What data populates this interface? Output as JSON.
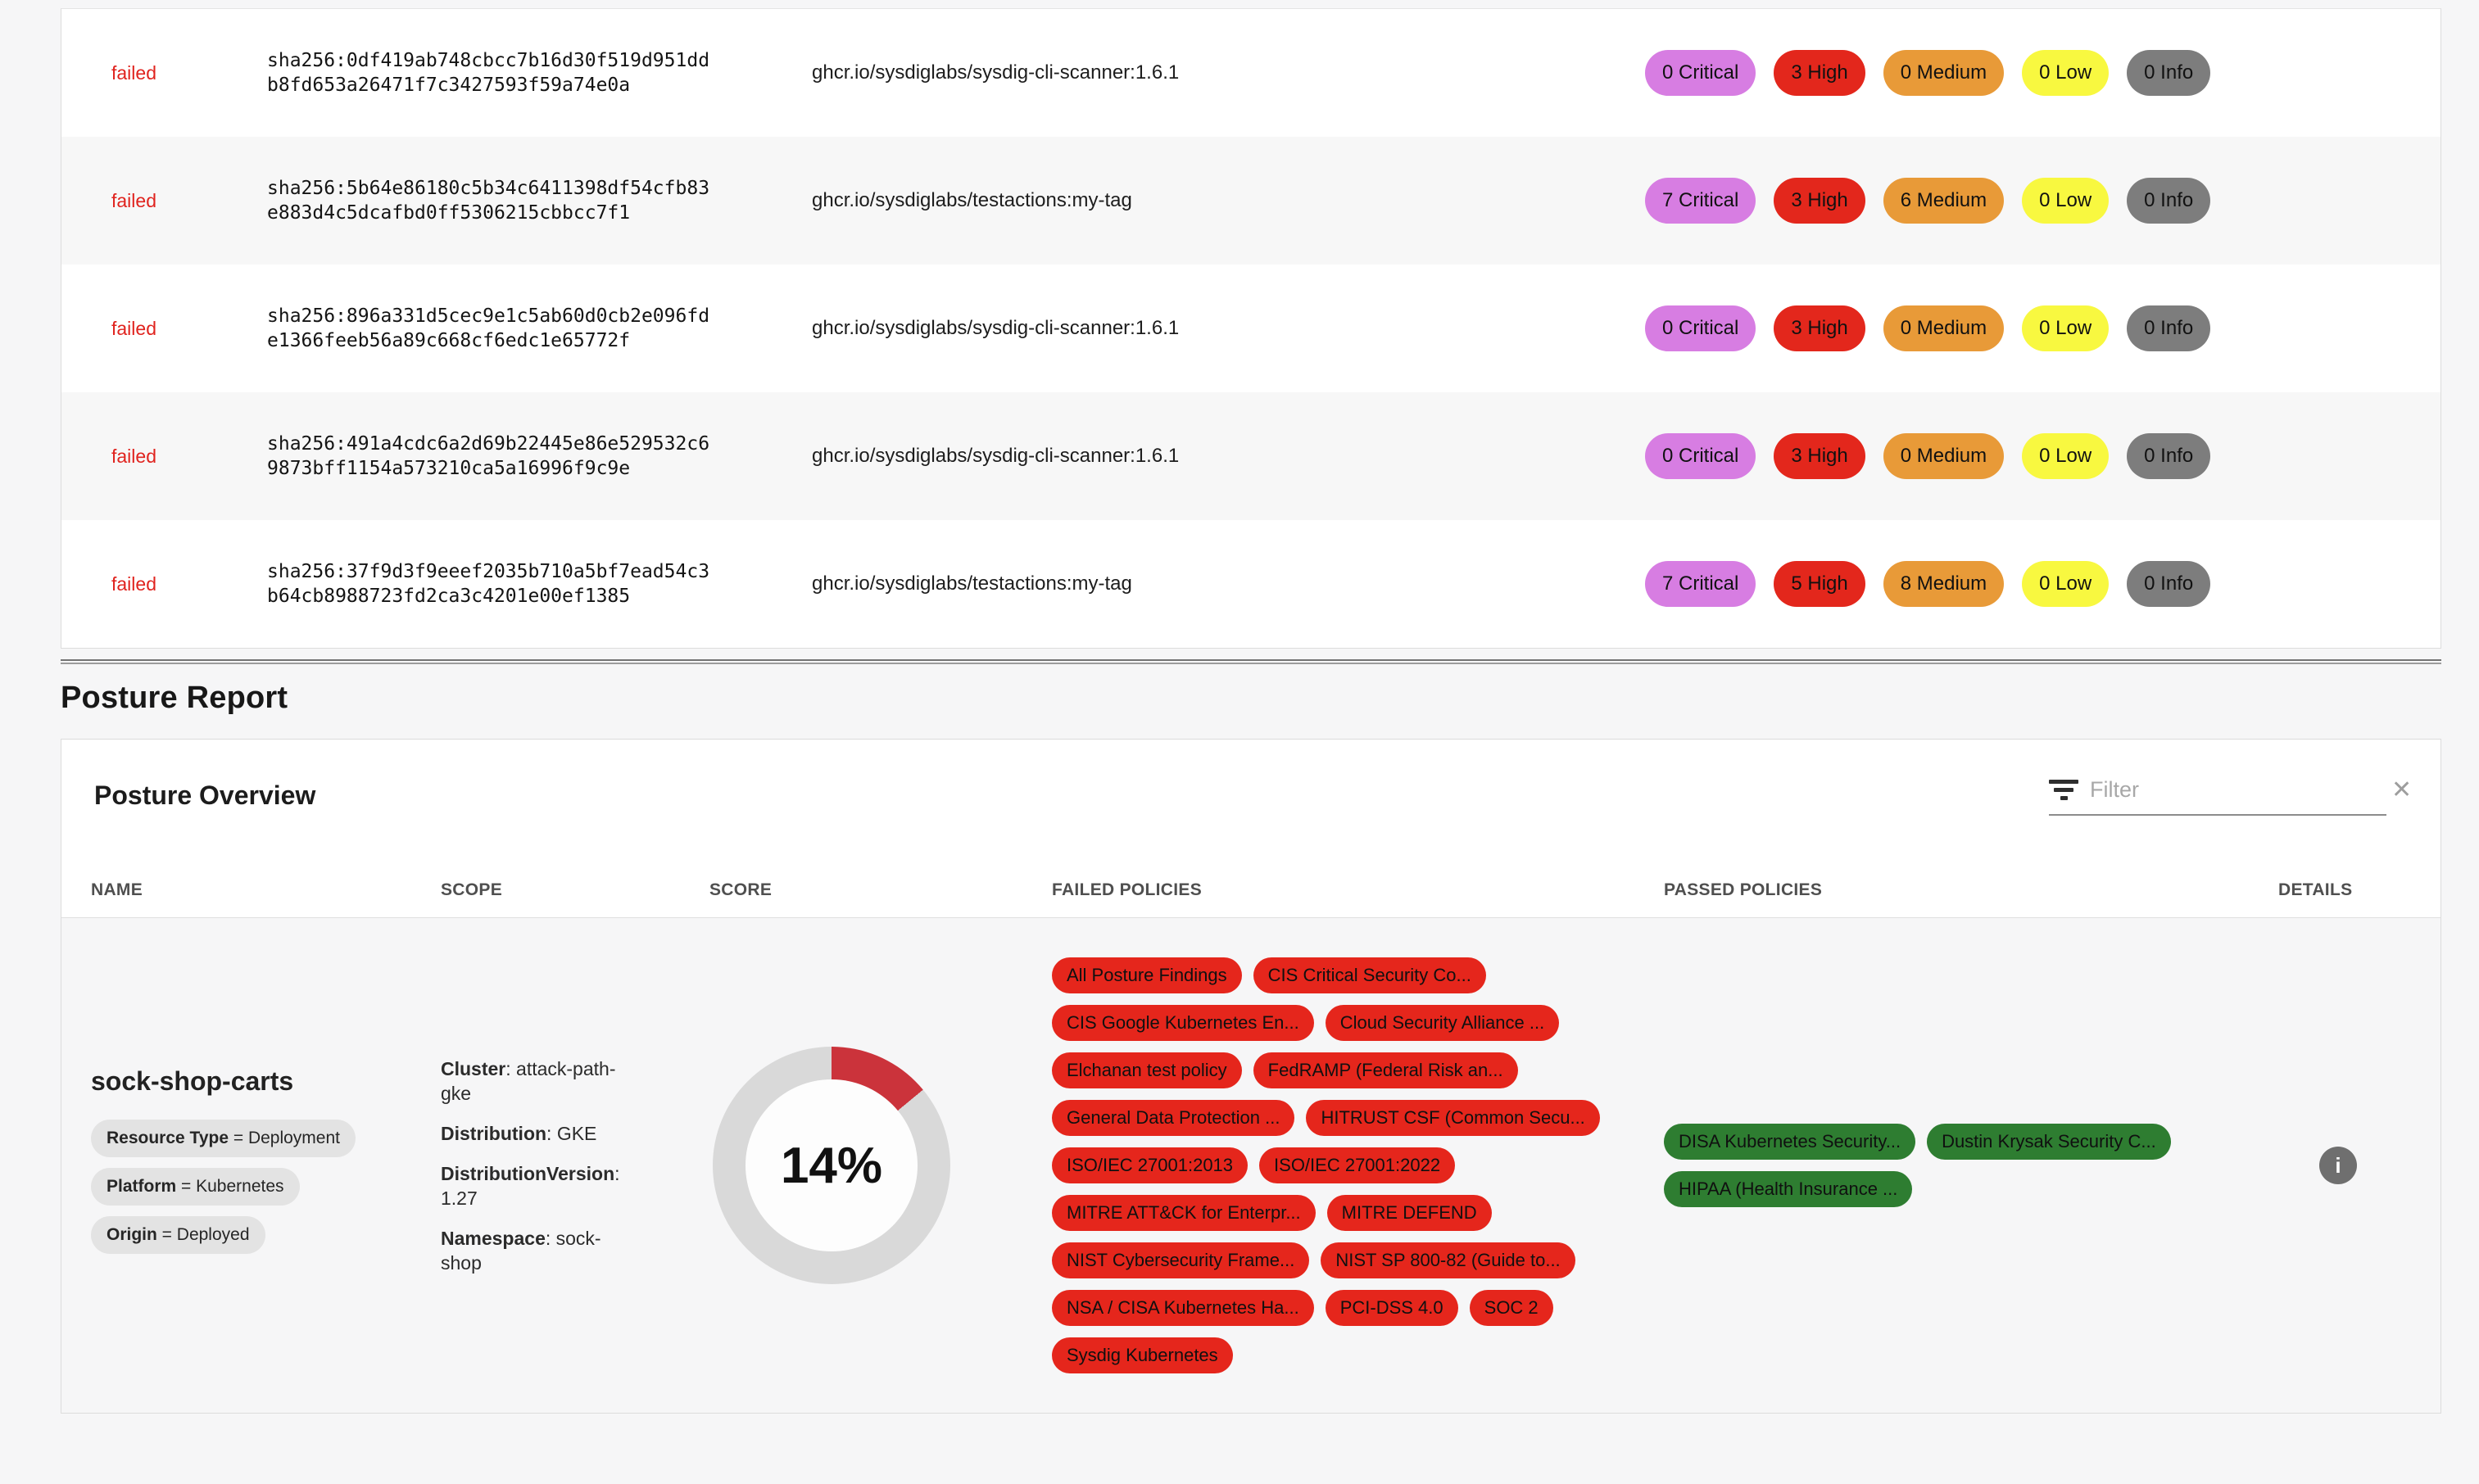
{
  "scan_table": {
    "rows": [
      {
        "status": "failed",
        "digest": "sha256:0df419ab748cbcc7b16d30f519d951ddb8fd653a26471f7c3427593f59a74e0a",
        "image": "ghcr.io/sysdiglabs/sysdig-cli-scanner:1.6.1",
        "badges": {
          "critical": "0 Critical",
          "high": "3 High",
          "medium": "0 Medium",
          "low": "0 Low",
          "info": "0 Info"
        }
      },
      {
        "status": "failed",
        "digest": "sha256:5b64e86180c5b34c6411398df54cfb83e883d4c5dcafbd0ff5306215cbbcc7f1",
        "image": "ghcr.io/sysdiglabs/testactions:my-tag",
        "badges": {
          "critical": "7 Critical",
          "high": "3 High",
          "medium": "6 Medium",
          "low": "0 Low",
          "info": "0 Info"
        }
      },
      {
        "status": "failed",
        "digest": "sha256:896a331d5cec9e1c5ab60d0cb2e096fde1366feeb56a89c668cf6edc1e65772f",
        "image": "ghcr.io/sysdiglabs/sysdig-cli-scanner:1.6.1",
        "badges": {
          "critical": "0 Critical",
          "high": "3 High",
          "medium": "0 Medium",
          "low": "0 Low",
          "info": "0 Info"
        }
      },
      {
        "status": "failed",
        "digest": "sha256:491a4cdc6a2d69b22445e86e529532c69873bff1154a573210ca5a16996f9c9e",
        "image": "ghcr.io/sysdiglabs/sysdig-cli-scanner:1.6.1",
        "badges": {
          "critical": "0 Critical",
          "high": "3 High",
          "medium": "0 Medium",
          "low": "0 Low",
          "info": "0 Info"
        }
      },
      {
        "status": "failed",
        "digest": "sha256:37f9d3f9eeef2035b710a5bf7ead54c3b64cb8988723fd2ca3c4201e00ef1385",
        "image": "ghcr.io/sysdiglabs/testactions:my-tag",
        "badges": {
          "critical": "7 Critical",
          "high": "5 High",
          "medium": "8 Medium",
          "low": "0 Low",
          "info": "0 Info"
        }
      }
    ]
  },
  "posture": {
    "section_title": "Posture Report",
    "card_title": "Posture Overview",
    "filter": {
      "placeholder": "Filter",
      "clear_glyph": "✕"
    },
    "columns": [
      "NAME",
      "SCOPE",
      "SCORE",
      "FAILED POLICIES",
      "PASSED POLICIES",
      "DETAILS"
    ],
    "separators": {
      "eq": " = ",
      "colon": ": "
    },
    "row": {
      "name": "sock-shop-carts",
      "tags": [
        {
          "key": "Resource Type",
          "value": "Deployment"
        },
        {
          "key": "Platform",
          "value": "Kubernetes"
        },
        {
          "key": "Origin",
          "value": "Deployed"
        }
      ],
      "scope": [
        {
          "key": "Cluster",
          "value": "attack-path-gke"
        },
        {
          "key": "Distribution",
          "value": "GKE"
        },
        {
          "key": "DistributionVersion",
          "value": "1.27"
        },
        {
          "key": "Namespace",
          "value": "sock-shop"
        }
      ],
      "score_percent": 14,
      "score_label": "14%",
      "failed_policies": [
        "All Posture Findings",
        "CIS Critical Security Co...",
        "CIS Google Kubernetes En...",
        "Cloud Security Alliance ...",
        "Elchanan test policy",
        "FedRAMP (Federal Risk an...",
        "General Data Protection ...",
        "HITRUST CSF (Common Secu...",
        "ISO/IEC 27001:2013",
        "ISO/IEC 27001:2022",
        "MITRE ATT&CK for Enterpr...",
        "MITRE DEFEND",
        "NIST Cybersecurity Frame...",
        "NIST SP 800-82 (Guide to...",
        "NSA / CISA Kubernetes Ha...",
        "PCI-DSS 4.0",
        "SOC 2",
        "Sysdig Kubernetes"
      ],
      "passed_policies": [
        "DISA Kubernetes Security...",
        "Dustin Krysak Security C...",
        "HIPAA (Health Insurance ..."
      ],
      "info_glyph": "i"
    }
  },
  "colors": {
    "status_failed": "#e0231e",
    "badge_critical": "#d77de2",
    "badge_high": "#e3271c",
    "badge_medium": "#e89a38",
    "badge_low": "#f8f840",
    "badge_info": "#7d7d7d",
    "pill_failed": "#e5261c",
    "pill_passed": "#2e7d31",
    "score_arc": "#cb333b",
    "score_track": "#d9d9d9"
  }
}
